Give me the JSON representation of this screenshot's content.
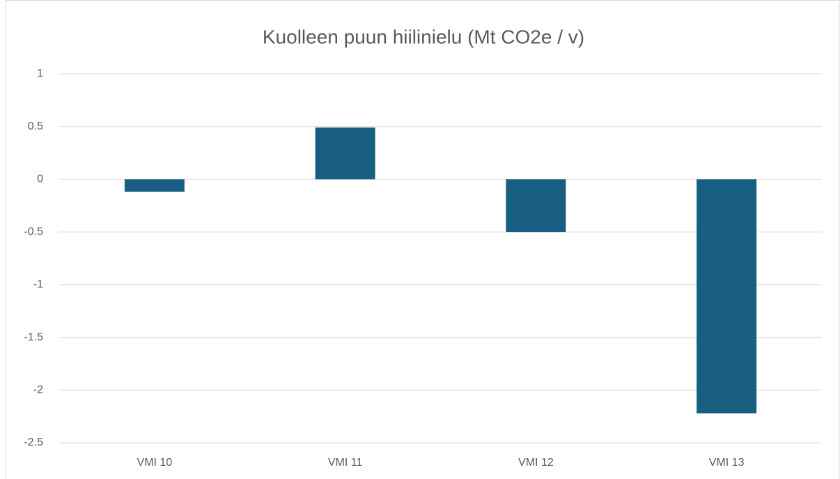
{
  "chart_data": {
    "type": "bar",
    "title": "Kuolleen puun hiilinielu (Mt CO2e / v)",
    "categories": [
      "VMI 10",
      "VMI 11",
      "VMI 12",
      "VMI 13"
    ],
    "values": [
      -0.12,
      0.49,
      -0.5,
      -2.22
    ],
    "color": "#175e80",
    "ylim": [
      -2.5,
      1
    ],
    "yticks": [
      1,
      0.5,
      0,
      -0.5,
      -1,
      -1.5,
      -2,
      -2.5
    ],
    "grid": true
  }
}
